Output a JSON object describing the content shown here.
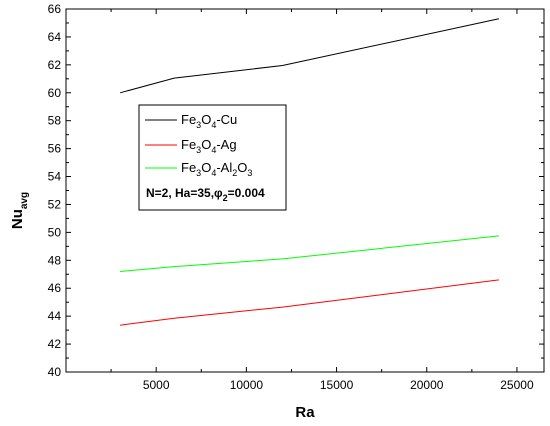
{
  "chart_data": {
    "type": "line",
    "title": "",
    "xlabel": "Ra",
    "ylabel": {
      "main": "Nu",
      "sub": "avg"
    },
    "xlim": [
      0,
      26500
    ],
    "ylim": [
      40,
      66
    ],
    "x_ticks": [
      5000,
      10000,
      15000,
      20000,
      25000
    ],
    "y_ticks": [
      40,
      42,
      44,
      46,
      48,
      50,
      52,
      54,
      56,
      58,
      60,
      62,
      64,
      66
    ],
    "x_tick_labels": [
      "5000",
      "10000",
      "15000",
      "20000",
      "25000"
    ],
    "y_tick_labels": [
      "40",
      "42",
      "44",
      "46",
      "48",
      "50",
      "52",
      "54",
      "56",
      "58",
      "60",
      "62",
      "64",
      "66"
    ],
    "grid": false,
    "legend_position": "upper-left-center",
    "series": [
      {
        "label_parts": [
          {
            "t": "Fe",
            "s": "n"
          },
          {
            "t": "3",
            "s": "sub"
          },
          {
            "t": "O",
            "s": "n"
          },
          {
            "t": "4",
            "s": "sub"
          },
          {
            "t": "-Cu",
            "s": "n"
          }
        ],
        "color": "#000000",
        "x": [
          3000,
          6000,
          12000,
          24000
        ],
        "y": [
          60.0,
          61.05,
          61.95,
          65.3
        ]
      },
      {
        "label_parts": [
          {
            "t": "Fe",
            "s": "n"
          },
          {
            "t": "3",
            "s": "sub"
          },
          {
            "t": "O",
            "s": "n"
          },
          {
            "t": "4",
            "s": "sub"
          },
          {
            "t": "-Ag",
            "s": "n"
          }
        ],
        "color": "#ff0000",
        "x": [
          3000,
          6000,
          12000,
          24000
        ],
        "y": [
          43.35,
          43.85,
          44.65,
          46.6
        ]
      },
      {
        "label_parts": [
          {
            "t": "Fe",
            "s": "n"
          },
          {
            "t": "3",
            "s": "sub"
          },
          {
            "t": "O",
            "s": "n"
          },
          {
            "t": "4",
            "s": "sub"
          },
          {
            "t": "-Al",
            "s": "n"
          },
          {
            "t": "2",
            "s": "sub"
          },
          {
            "t": "O",
            "s": "n"
          },
          {
            "t": "3",
            "s": "sub"
          }
        ],
        "color": "#00ff00",
        "x": [
          3000,
          6000,
          12000,
          24000
        ],
        "y": [
          47.2,
          47.55,
          48.1,
          49.75
        ]
      }
    ],
    "annotation_parts": [
      {
        "t": "N=2, Ha=35,",
        "s": "n"
      },
      {
        "t": "φ",
        "s": "n"
      },
      {
        "t": "2",
        "s": "sub"
      },
      {
        "t": "=0.004",
        "s": "n"
      }
    ]
  }
}
